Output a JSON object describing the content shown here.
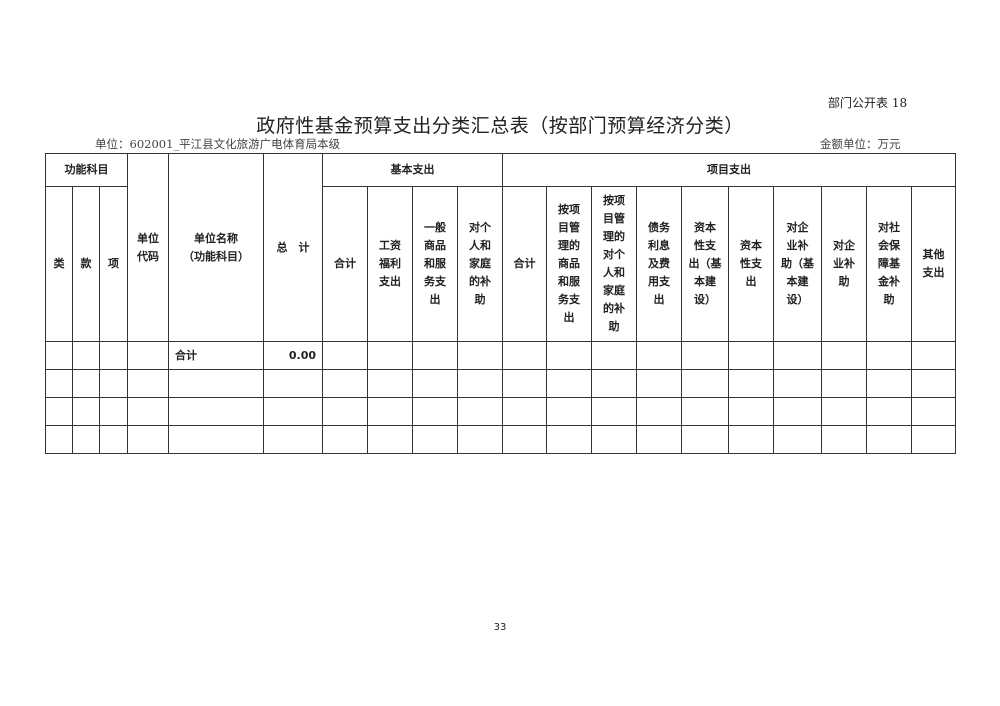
{
  "tag": "部门公开表 18",
  "title": "政府性基金预算支出分类汇总表（按部门预算经济分类）",
  "unit": "单位：602001_平江县文化旅游广电体育局本级",
  "money_unit": "金额单位：万元",
  "header": {
    "func": "功能科目",
    "lei": "类",
    "kuan": "款",
    "xiang": "项",
    "code": "单位\n代码",
    "name": "单位名称\n（功能科目）",
    "total": "总　计",
    "basic": "基本支出",
    "project": "项目支出",
    "basic_cols": [
      "合计",
      "工资\n福利\n支出",
      "一般\n商品\n和服\n务支\n出",
      "对个\n人和\n家庭\n的补\n助"
    ],
    "project_cols": [
      "合计",
      "按项\n目管\n理的\n商品\n和服\n务支\n出",
      "按项\n目管\n理的\n对个\n人和\n家庭\n的补\n助",
      "债务\n利息\n及费\n用支\n出",
      "资本\n性支\n出（基\n本建\n设）",
      "资本\n性支\n出",
      "对企\n业补\n助（基\n本建\n设）",
      "对企\n业补\n助",
      "对社\n会保\n障基\n金补\n助",
      "其他\n支出"
    ]
  },
  "rows": [
    {
      "name": "合计",
      "total": "0.00"
    }
  ],
  "page_number": "33"
}
